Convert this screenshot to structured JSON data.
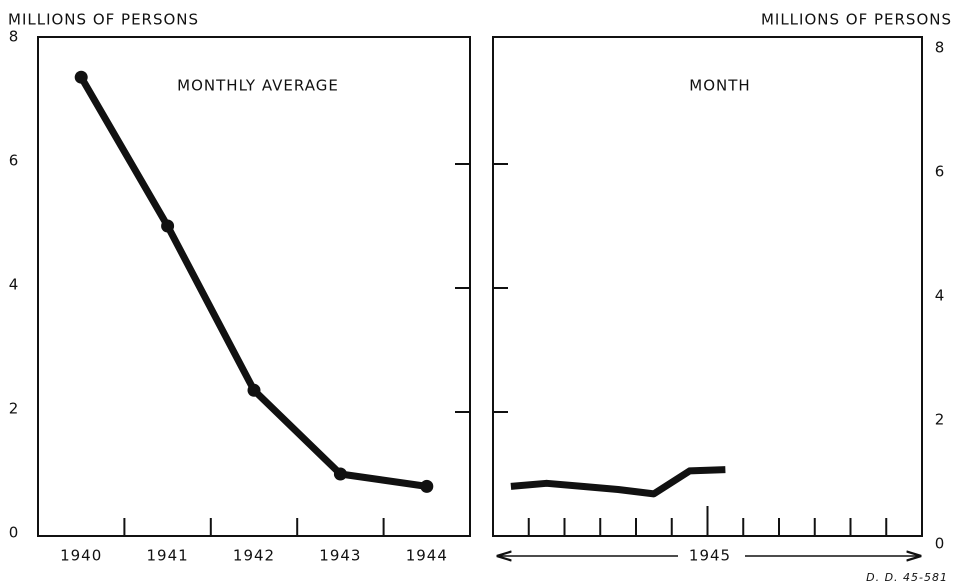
{
  "chart_data": [
    {
      "type": "line",
      "ylabel": "MILLIONS OF PERSONS",
      "annotation": "MONTHLY AVERAGE",
      "categories": [
        "1940",
        "1941",
        "1942",
        "1943",
        "1944"
      ],
      "values": [
        7.4,
        5.0,
        2.35,
        1.0,
        0.8
      ],
      "color": "#111111",
      "markers": true,
      "ylim": [
        0,
        8
      ],
      "yticks": [
        0,
        2,
        4,
        6,
        8
      ],
      "y_axis_side": "left"
    },
    {
      "type": "line",
      "ylabel": "MILLIONS OF PERSONS",
      "annotation": "MONTH",
      "xlabel": "1945",
      "categories": [
        null,
        null,
        null,
        null,
        null,
        null,
        null,
        null,
        null,
        null,
        null,
        null
      ],
      "values": [
        0.8,
        0.85,
        0.8,
        0.75,
        0.68,
        1.05,
        1.07,
        null,
        null,
        null,
        null,
        null
      ],
      "color": "#111111",
      "markers": false,
      "ylim": [
        0,
        8
      ],
      "yticks": [
        0,
        2,
        4,
        6,
        8
      ],
      "y_axis_side": "right",
      "note": "D. D. 45-581"
    }
  ]
}
